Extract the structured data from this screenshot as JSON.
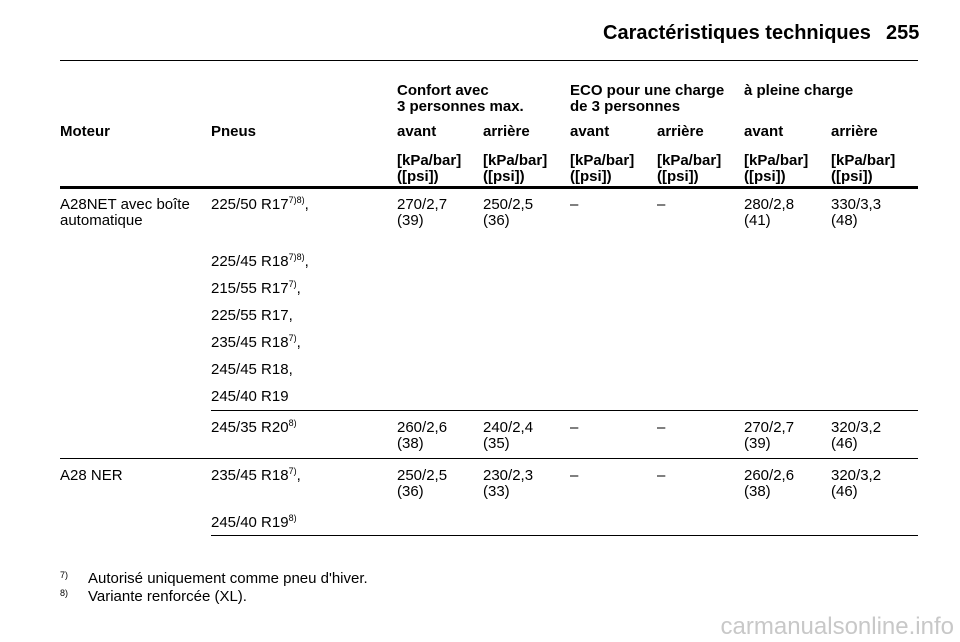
{
  "header": {
    "title": "Caractéristiques techniques",
    "page": "255"
  },
  "table": {
    "groups": [
      [
        "Confort avec",
        "3 personnes max."
      ],
      [
        "ECO pour une charge",
        "de 3 personnes"
      ],
      [
        "à pleine charge"
      ]
    ],
    "columns": [
      "Moteur",
      "Pneus",
      "avant",
      "arrière",
      "avant",
      "arrière",
      "avant",
      "arrière"
    ],
    "units": [
      [
        "[kPa/bar]",
        "([psi])"
      ],
      [
        "[kPa/bar]",
        "([psi])"
      ],
      [
        "[kPa/bar]",
        "([psi])"
      ],
      [
        "[kPa/bar]",
        "([psi])"
      ],
      [
        "[kPa/bar]",
        "([psi])"
      ],
      [
        "[kPa/bar]",
        "([psi])"
      ]
    ],
    "rows": [
      {
        "engine": [
          "A28NET avec boîte",
          "automatique"
        ],
        "blocks": [
          {
            "tires": [
              {
                "size": "225/50 R17",
                "note": "7)8)",
                "sep": ","
              },
              {
                "size": "225/45 R18",
                "note": "7)8)",
                "sep": ","
              },
              {
                "size": "215/55 R17",
                "note": "7)",
                "sep": ","
              },
              {
                "size": "225/55 R17,"
              },
              {
                "size": "235/45 R18",
                "note": "7)",
                "sep": ","
              },
              {
                "size": "245/45 R18,"
              },
              {
                "size": "245/40 R19"
              }
            ],
            "values": [
              [
                "270/2,7",
                "(39)"
              ],
              [
                "250/2,5",
                "(36)"
              ],
              [
                "–"
              ],
              [
                "–"
              ],
              [
                "280/2,8",
                "(41)"
              ],
              [
                "330/3,3",
                "(48)"
              ]
            ]
          },
          {
            "tires": [
              {
                "size": "245/35 R20",
                "note": "8)"
              }
            ],
            "values": [
              [
                "260/2,6",
                "(38)"
              ],
              [
                "240/2,4",
                "(35)"
              ],
              [
                "–"
              ],
              [
                "–"
              ],
              [
                "270/2,7",
                "(39)"
              ],
              [
                "320/3,2",
                "(46)"
              ]
            ]
          }
        ]
      },
      {
        "engine": [
          "A28 NER"
        ],
        "blocks": [
          {
            "tires": [
              {
                "size": "235/45 R18",
                "note": "7)",
                "sep": ","
              },
              {
                "size": "245/40 R19",
                "note": "8)"
              }
            ],
            "values": [
              [
                "250/2,5",
                "(36)"
              ],
              [
                "230/2,3",
                "(33)"
              ],
              [
                "–"
              ],
              [
                "–"
              ],
              [
                "260/2,6",
                "(38)"
              ],
              [
                "320/3,2",
                "(46)"
              ]
            ]
          }
        ]
      }
    ]
  },
  "footnotes": [
    {
      "mark": "7)",
      "text": "Autorisé uniquement comme pneu d'hiver."
    },
    {
      "mark": "8)",
      "text": "Variante renforcée (XL)."
    }
  ],
  "watermark": "carmanualsonline.info"
}
